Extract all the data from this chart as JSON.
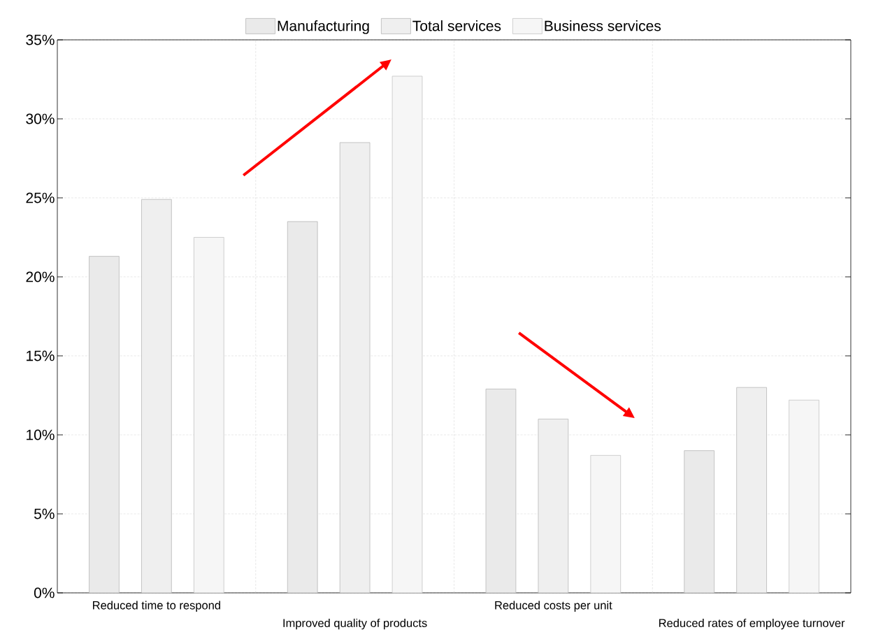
{
  "chart_data": {
    "type": "bar",
    "categories": [
      "Reduced time to respond",
      "Improved quality of products",
      "Reduced costs per unit",
      "Reduced rates of employee turnover"
    ],
    "series": [
      {
        "name": "Manufacturing",
        "color": "#b8b8b8",
        "values": [
          21.3,
          23.5,
          12.9,
          9.0
        ]
      },
      {
        "name": "Total services",
        "color": "#b8b8b8",
        "values": [
          24.9,
          28.5,
          11.0,
          13.0
        ]
      },
      {
        "name": "Business services",
        "color": "#c4c4c4",
        "values": [
          22.5,
          32.7,
          8.7,
          12.2
        ]
      }
    ],
    "ylim": [
      0,
      35
    ],
    "yticks": [
      {
        "value": 0,
        "label": "0%"
      },
      {
        "value": 5,
        "label": "5%"
      },
      {
        "value": 10,
        "label": "10%"
      },
      {
        "value": 15,
        "label": "15%"
      },
      {
        "value": 20,
        "label": "20%"
      },
      {
        "value": 25,
        "label": "25%"
      },
      {
        "value": 30,
        "label": "30%"
      },
      {
        "value": 35,
        "label": "35%"
      }
    ],
    "grid": true,
    "legend": "top"
  }
}
